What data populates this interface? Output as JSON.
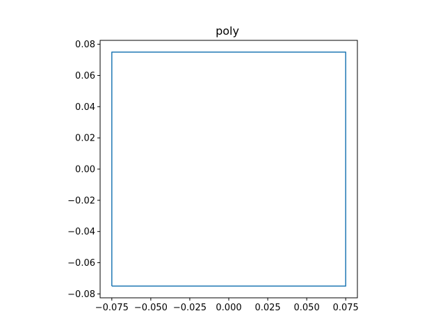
{
  "chart_data": {
    "type": "line",
    "title": "poly",
    "xlabel": "",
    "ylabel": "",
    "xlim": [
      -0.0825,
      0.0825
    ],
    "ylim": [
      -0.0825,
      0.0825
    ],
    "grid": false,
    "x_ticks": [
      "−0.075",
      "−0.050",
      "−0.025",
      "0.000",
      "0.025",
      "0.050",
      "0.075"
    ],
    "x_tick_values": [
      -0.075,
      -0.05,
      -0.025,
      0.0,
      0.025,
      0.05,
      0.075
    ],
    "y_ticks": [
      "−0.08",
      "−0.06",
      "−0.04",
      "−0.02",
      "0.00",
      "0.02",
      "0.04",
      "0.06",
      "0.08"
    ],
    "y_tick_values": [
      -0.08,
      -0.06,
      -0.04,
      -0.02,
      0.0,
      0.02,
      0.04,
      0.06,
      0.08
    ],
    "series": [
      {
        "color": "#1f77b4",
        "x": [
          -0.075,
          0.075,
          0.075,
          -0.075,
          -0.075
        ],
        "y": [
          -0.075,
          -0.075,
          0.075,
          0.075,
          -0.075
        ]
      }
    ]
  }
}
